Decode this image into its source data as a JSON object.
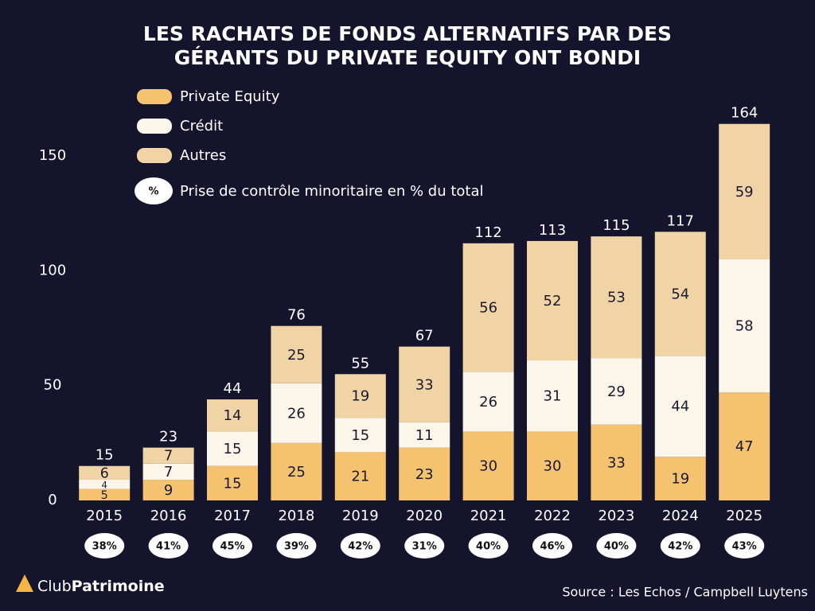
{
  "chart_data": {
    "type": "stacked_bar",
    "title_lines": [
      "LES RACHATS DE FONDS ALTERNATIFS PAR DES",
      "GÉRANTS DU PRIVATE EQUITY ONT BONDI"
    ],
    "categories": [
      "2015",
      "2016",
      "2017",
      "2018",
      "2019",
      "2020",
      "2021",
      "2022",
      "2023",
      "2024",
      "2025"
    ],
    "series": [
      {
        "name": "Private Equity",
        "color": "#f5c270",
        "values": [
          5,
          9,
          15,
          25,
          21,
          23,
          30,
          30,
          33,
          19,
          47
        ]
      },
      {
        "name": "Crédit",
        "color": "#fcf6ea",
        "values": [
          4,
          7,
          15,
          26,
          15,
          11,
          26,
          31,
          29,
          44,
          58
        ]
      },
      {
        "name": "Autres",
        "color": "#f1d4a6",
        "values": [
          6,
          7,
          14,
          25,
          19,
          33,
          56,
          52,
          53,
          54,
          59
        ]
      }
    ],
    "totals": [
      15,
      23,
      44,
      76,
      55,
      67,
      112,
      113,
      115,
      117,
      164
    ],
    "minority_share": {
      "legend_symbol": "%",
      "legend_label": "Prise de contrôle minoritaire en % du total",
      "values": [
        38,
        41,
        45,
        39,
        42,
        31,
        40,
        46,
        40,
        42,
        43
      ],
      "value_labels": [
        "38%",
        "41%",
        "45%",
        "39%",
        "42%",
        "31%",
        "40%",
        "46%",
        "40%",
        "42%",
        "43%"
      ]
    },
    "ylim": [
      0,
      175
    ],
    "yticks": [
      0,
      50,
      100,
      150
    ],
    "grid": false,
    "legend_position": "top-left",
    "source": "Source : Les Echos / Campbell Luytens",
    "logo": {
      "light": "Club",
      "bold": "Patrimoine"
    }
  }
}
